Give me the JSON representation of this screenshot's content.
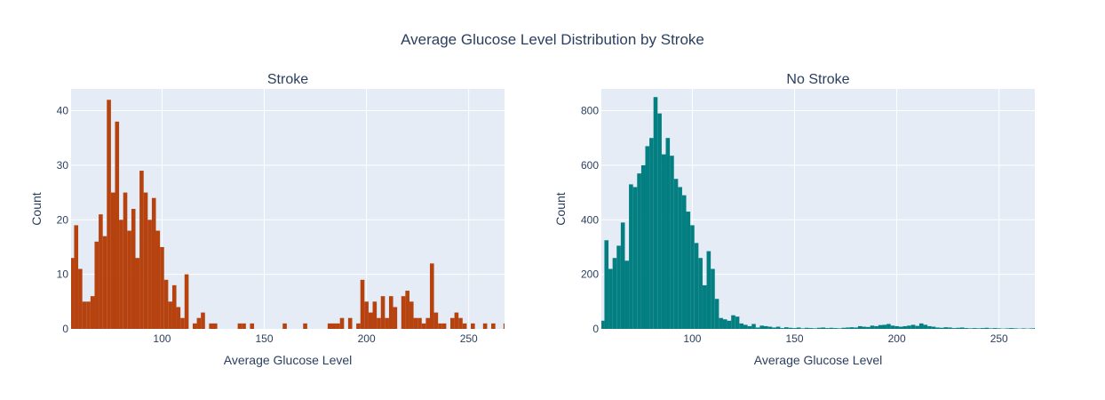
{
  "figure_title": "Average Glucose Level Distribution by Stroke",
  "chart_data": [
    {
      "type": "bar",
      "title": "Stroke",
      "xlabel": "Average Glucose Level",
      "ylabel": "Count",
      "color": "#b5420f",
      "xlim": [
        55.5,
        267.5
      ],
      "ylim": [
        0,
        44
      ],
      "xticks": [
        100,
        150,
        200,
        250
      ],
      "yticks": [
        0,
        10,
        20,
        30,
        40
      ],
      "bin_start": 55,
      "bin_width": 2,
      "values": [
        13,
        19,
        11,
        5,
        5,
        6,
        16,
        21,
        17,
        42,
        25,
        38,
        20,
        25,
        18,
        22,
        13,
        29,
        25,
        20,
        24,
        18,
        15,
        9,
        5,
        8,
        4,
        2,
        10,
        0,
        1,
        2,
        3,
        0,
        1,
        1,
        0,
        0,
        0,
        0,
        0,
        1,
        1,
        0,
        1,
        0,
        0,
        0,
        0,
        0,
        0,
        0,
        1,
        0,
        0,
        0,
        0,
        1,
        0,
        0,
        0,
        0,
        0,
        1,
        1,
        1,
        2,
        0,
        2,
        0,
        1,
        9,
        5,
        3,
        5,
        2,
        6,
        2,
        6,
        4,
        0,
        6,
        7,
        5,
        2,
        2,
        1,
        2,
        12,
        3,
        1,
        1,
        0,
        2,
        3,
        2,
        1,
        0,
        1,
        0,
        0,
        1,
        0,
        1,
        0,
        0,
        1
      ]
    },
    {
      "type": "bar",
      "title": "No Stroke",
      "xlabel": "Average Glucose Level",
      "ylabel": "Count",
      "color": "#047f81",
      "xlim": [
        55.5,
        267.5
      ],
      "ylim": [
        0,
        880
      ],
      "xticks": [
        100,
        150,
        200,
        250
      ],
      "yticks": [
        0,
        200,
        400,
        600,
        800
      ],
      "bin_start": 55,
      "bin_width": 2,
      "values": [
        30,
        325,
        220,
        260,
        305,
        390,
        250,
        530,
        520,
        570,
        600,
        670,
        700,
        850,
        790,
        640,
        700,
        635,
        550,
        520,
        490,
        430,
        380,
        315,
        260,
        160,
        285,
        220,
        110,
        40,
        35,
        30,
        50,
        45,
        20,
        15,
        10,
        18,
        5,
        12,
        10,
        8,
        5,
        8,
        3,
        6,
        4,
        3,
        5,
        2,
        4,
        3,
        2,
        4,
        5,
        3,
        4,
        3,
        2,
        4,
        5,
        6,
        5,
        10,
        8,
        7,
        12,
        10,
        14,
        15,
        18,
        12,
        10,
        8,
        10,
        12,
        15,
        11,
        20,
        15,
        10,
        8,
        5,
        4,
        6,
        5,
        3,
        4,
        5,
        3,
        2,
        3,
        2,
        3,
        4,
        2,
        3,
        2,
        1,
        2,
        3,
        2,
        1,
        2,
        1,
        2,
        3
      ]
    }
  ]
}
